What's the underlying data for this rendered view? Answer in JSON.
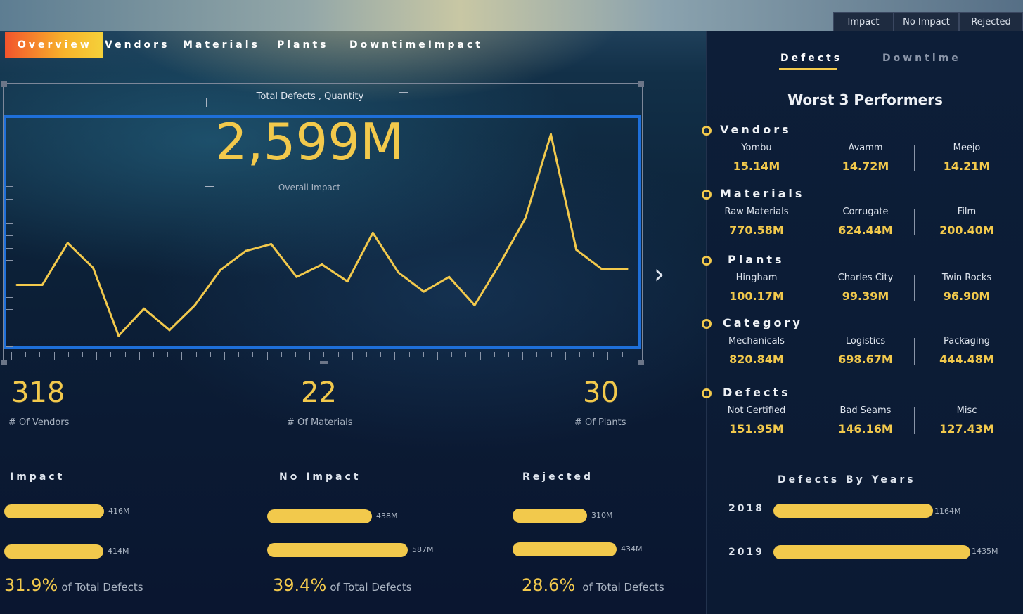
{
  "filter_buttons": [
    "Impact",
    "No Impact",
    "Rejected"
  ],
  "nav_tabs": [
    "Overview",
    "Vendors",
    "Materials",
    "Plants",
    "DowntimeImpact"
  ],
  "chart": {
    "title": "Total Defects , Quantity",
    "big_value": "2,599M",
    "big_label": "Overall Impact"
  },
  "chart_data": {
    "type": "line",
    "title": "Total Defects , Quantity",
    "color": "#f2c94c",
    "x": [
      1,
      2,
      3,
      4,
      5,
      6,
      7,
      8,
      9,
      10,
      11,
      12,
      13,
      14,
      15,
      16,
      17,
      18,
      19,
      20,
      21,
      22,
      23,
      24,
      25
    ],
    "values": [
      45,
      45,
      82,
      60,
      0,
      24,
      5,
      27,
      58,
      75,
      81,
      52,
      63,
      48,
      91,
      56,
      39,
      52,
      27,
      64,
      104,
      178,
      76,
      59,
      59
    ],
    "ylim": [
      -5,
      185
    ]
  },
  "next_arrow": "›",
  "kpis": [
    {
      "value": "318",
      "label": "# Of Vendors"
    },
    {
      "value": "22",
      "label": "# Of Materials"
    },
    {
      "value": "30",
      "label": "# Of Plants"
    }
  ],
  "impact_groups": [
    {
      "title": "Impact",
      "bars": [
        {
          "value": 416,
          "label": "416M"
        },
        {
          "value": 414,
          "label": "414M"
        }
      ],
      "pct": "31.9%",
      "pct_text": "of Total Defects"
    },
    {
      "title": "No Impact",
      "bars": [
        {
          "value": 438,
          "label": "438M"
        },
        {
          "value": 587,
          "label": "587M"
        }
      ],
      "pct": "39.4%",
      "pct_text": "of Total Defects"
    },
    {
      "title": "Rejected",
      "bars": [
        {
          "value": 310,
          "label": "310M"
        },
        {
          "value": 434,
          "label": "434M"
        }
      ],
      "pct": "28.6%",
      "pct_text": "of Total Defects"
    }
  ],
  "right_tabs": [
    "Defects",
    "Downtime"
  ],
  "right_title": "Worst 3 Performers",
  "categories": [
    {
      "name": "Vendors",
      "items": [
        {
          "name": "Yombu",
          "value": "15.14M"
        },
        {
          "name": "Avamm",
          "value": "14.72M"
        },
        {
          "name": "Meejo",
          "value": "14.21M"
        }
      ]
    },
    {
      "name": "Materials",
      "items": [
        {
          "name": "Raw Materials",
          "value": "770.58M"
        },
        {
          "name": "Corrugate",
          "value": "624.44M"
        },
        {
          "name": "Film",
          "value": "200.40M"
        }
      ]
    },
    {
      "name": "Plants",
      "items": [
        {
          "name": "Hingham",
          "value": "100.17M"
        },
        {
          "name": "Charles City",
          "value": "99.39M"
        },
        {
          "name": "Twin Rocks",
          "value": "96.90M"
        }
      ]
    },
    {
      "name": "Category",
      "items": [
        {
          "name": "Mechanicals",
          "value": "820.84M"
        },
        {
          "name": "Logistics",
          "value": "698.67M"
        },
        {
          "name": "Packaging",
          "value": "444.48M"
        }
      ]
    },
    {
      "name": "Defects",
      "items": [
        {
          "name": "Not Certified",
          "value": "151.95M"
        },
        {
          "name": "Bad Seams",
          "value": "146.16M"
        },
        {
          "name": "Misc",
          "value": "127.43M"
        }
      ]
    }
  ],
  "years_chart": {
    "title": "Defects By Years",
    "rows": [
      {
        "year": "2018",
        "value": 1164,
        "label": "1164M"
      },
      {
        "year": "2019",
        "value": 1435,
        "label": "1435M"
      }
    ]
  },
  "colors": {
    "accent": "#f2c94c",
    "selection": "#1e6fd9"
  }
}
